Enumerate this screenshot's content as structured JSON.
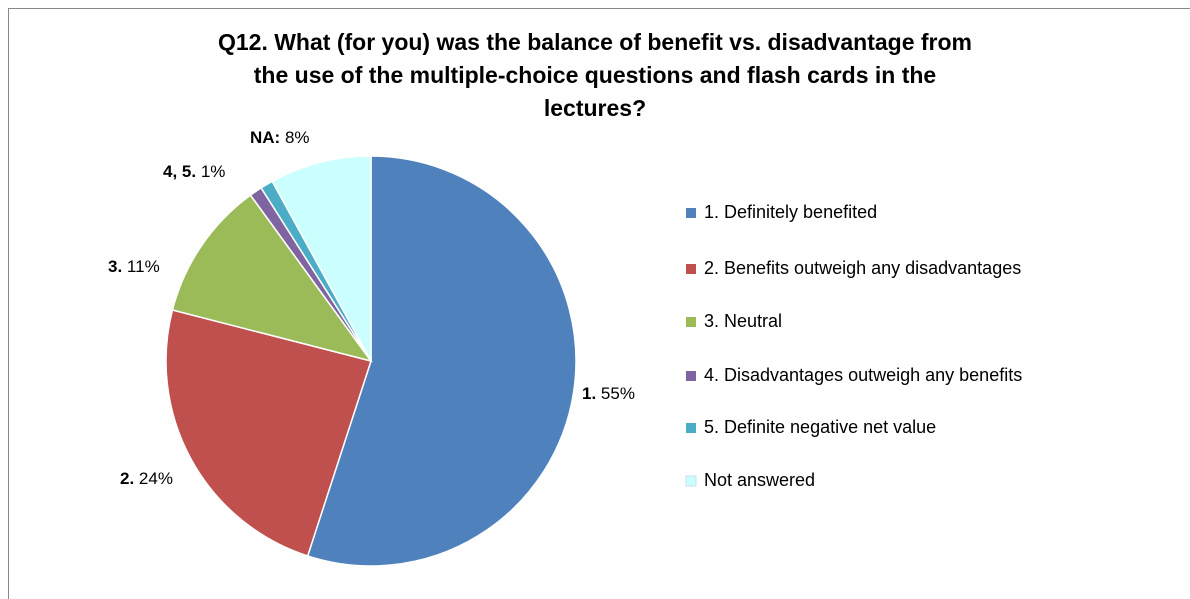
{
  "chart_data": {
    "type": "pie",
    "title": [
      "Q12. What (for you) was the balance of benefit vs. disadvantage from",
      "the use of the multiple-choice questions and flash cards in the",
      "lectures?"
    ],
    "categories": [
      "1. Definitely benefited",
      "2. Benefits outweigh any disadvantages",
      "3. Neutral",
      "4. Disadvantages outweigh any benefits",
      "5. Definite negative net value",
      "Not answered"
    ],
    "values": [
      55,
      24,
      11,
      1,
      1,
      8
    ],
    "value_labels": [
      "55%",
      "24%",
      "11%",
      "1%",
      null,
      "8%"
    ],
    "label_prefixes": [
      "1.",
      "2.",
      "3.",
      "4, 5.",
      null,
      "NA:"
    ],
    "colors": [
      "#4f81bd",
      "#c0504d",
      "#9bbb59",
      "#8064a2",
      "#4bacc6",
      "#ccffff"
    ],
    "legend": "right"
  }
}
